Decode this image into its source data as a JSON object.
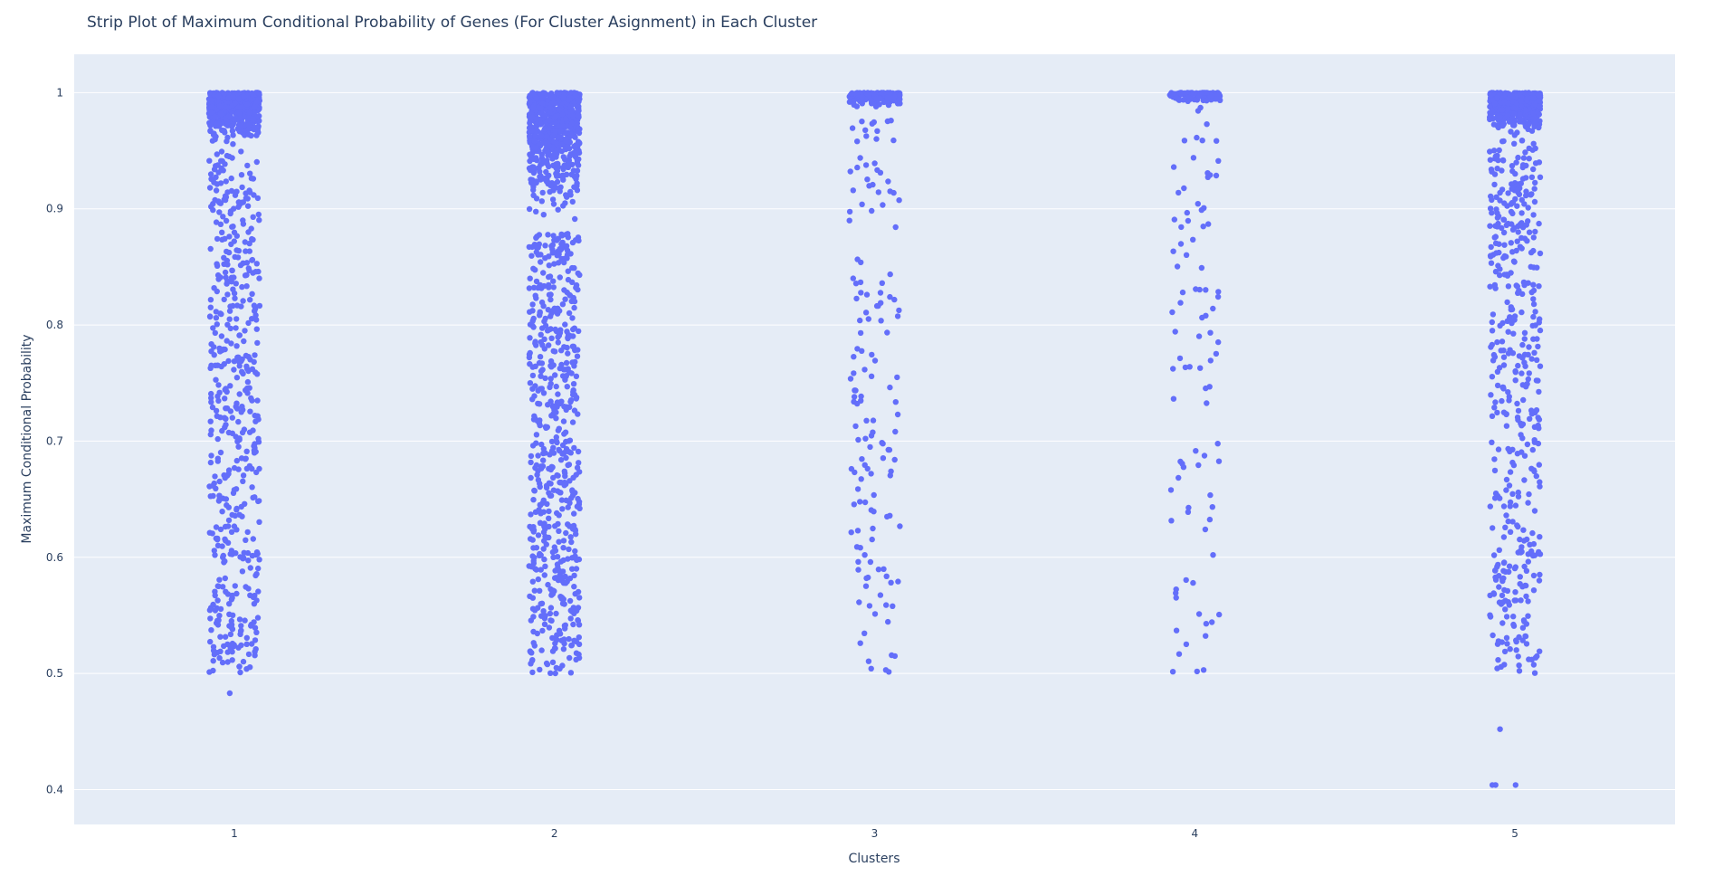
{
  "chart_data": {
    "type": "scatter",
    "subtype": "strip",
    "title": "Strip Plot of Maximum Conditional Probability of Genes (For Cluster Asignment) in Each Cluster",
    "xlabel": "Clusters",
    "ylabel": "Maximum Conditional Probability",
    "categories": [
      "1",
      "2",
      "3",
      "4",
      "5"
    ],
    "ylim": [
      0.37,
      1.033
    ],
    "yticks": [
      0.4,
      0.5,
      0.6,
      0.7,
      0.8,
      0.9,
      1
    ],
    "ytick_labels": [
      "0.4",
      "0.5",
      "0.6",
      "0.7",
      "0.8",
      "0.9",
      "1"
    ],
    "grid": true,
    "legend": "none",
    "marker_color": "#636efa",
    "background_color": "#e5ecf6",
    "series": [
      {
        "category": "1",
        "count_estimate": 1100,
        "min": 0.483,
        "max": 1.0,
        "dense_above": 0.95
      },
      {
        "category": "2",
        "count_estimate": 1300,
        "min": 0.501,
        "max": 1.0,
        "dense_above": 0.88
      },
      {
        "category": "3",
        "count_estimate": 320,
        "min": 0.503,
        "max": 1.0,
        "dense_above": 0.985
      },
      {
        "category": "4",
        "count_estimate": 200,
        "min": 0.503,
        "max": 1.0,
        "dense_above": 0.99
      },
      {
        "category": "5",
        "count_estimate": 1000,
        "min": 0.404,
        "max": 1.0,
        "dense_above": 0.96,
        "outliers": [
          0.452,
          0.404,
          0.404
        ]
      }
    ]
  }
}
